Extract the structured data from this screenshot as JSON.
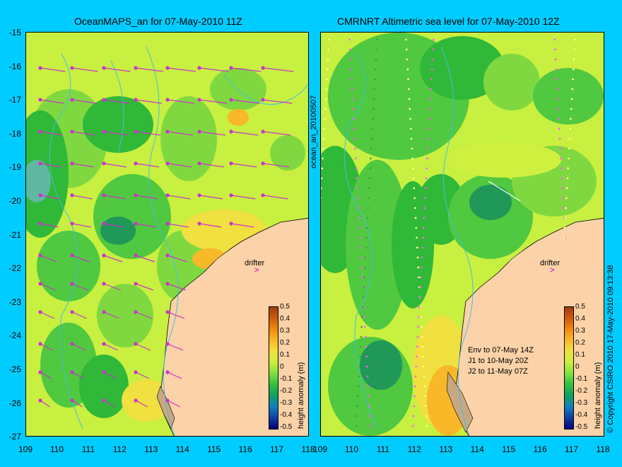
{
  "left_panel": {
    "title": "OceanMAPS_an for 07-May-2010 11Z",
    "drifter_label": "drifter"
  },
  "right_panel": {
    "title": "CMRNRT Altimetric sea level  for 07-May-2010 12Z",
    "drifter_label": "drifter",
    "legend_lines": [
      "Env to 07-May 14Z",
      "J1 to 10-May 20Z",
      "J2 to 11-May 07Z"
    ]
  },
  "y_axis_labels": [
    "-15",
    "-16",
    "-17",
    "-18",
    "-19",
    "-20",
    "-21",
    "-22",
    "-23",
    "-24",
    "-25",
    "-26",
    "-27"
  ],
  "x_axis_labels_left": [
    "109",
    "110",
    "111",
    "112",
    "113",
    "114",
    "115",
    "116",
    "117",
    "118"
  ],
  "x_axis_labels_right": [
    "109",
    "110",
    "111",
    "112",
    "113",
    "114",
    "115",
    "116",
    "117",
    "118"
  ],
  "colorbar": {
    "title": "height anomaly (m)",
    "ticks": [
      "0.5",
      "0.4",
      "0.3",
      "0.2",
      "0.1",
      "0",
      "-0.1",
      "-0.2",
      "-0.3",
      "-0.4",
      "-0.5"
    ],
    "colors": [
      "#a0400a",
      "#d05a0c",
      "#f08a10",
      "#f8b828",
      "#f0e040",
      "#c8f040",
      "#80e040",
      "#30c040",
      "#10a060",
      "#1080c0",
      "#1040a0",
      "#000080"
    ]
  },
  "middle_vertical_label": "ocean_an_20100507",
  "right_vertical_label": "© Copyright CSIRO 2010   17-May-2010 09:13:38",
  "colors": {
    "background": "#00ccff",
    "land": "#fcd2a8",
    "coast_brown": "#c8a882",
    "ocean_green": "#80d840",
    "ocean_yellow": "#d0f040",
    "ocean_dark": "#30b838",
    "arrow": "#cc33cc",
    "contour": "#40c0e0"
  }
}
